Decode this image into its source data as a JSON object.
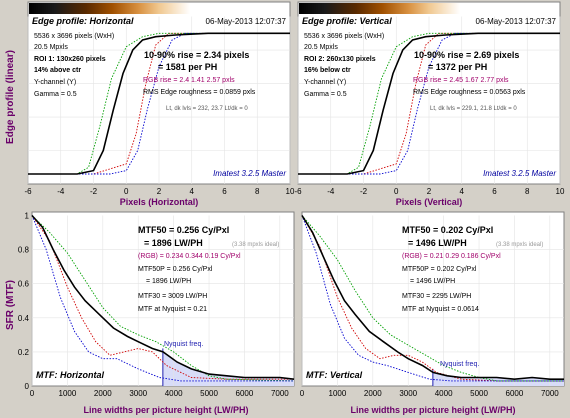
{
  "page": {
    "background": "#d4d0c8"
  },
  "colors": {
    "plot_bg": "#ffffff",
    "axis_label": "#6a006a",
    "red": "#d00000",
    "green": "#00a000",
    "blue": "#0000d0",
    "ycurve": "#000000",
    "nyq": "#2020b0",
    "nyq_fill": "#d8dcf8",
    "master": "#0000a0",
    "rgb_text": "#a0006a"
  },
  "edge_ylabel": "Edge profile (linear)",
  "sfr_ylabel": "SFR (MTF)",
  "chart_data": [
    {
      "type": "line",
      "xlim": [
        -6,
        10
      ],
      "ylim": [
        0,
        1
      ],
      "xticks": [
        "-6",
        "-4",
        "-2",
        "0",
        "2",
        "4",
        "6",
        "8",
        "10"
      ],
      "xlabel": "Pixels (Horizontal)",
      "header_title": "Edge profile: Horizontal",
      "date": "06-May-2013 12:07:37",
      "info_lines": [
        "5536 x 3696 pixels (WxH)",
        "20.5 Mpxls",
        "ROI 1: 130x260 pixels",
        "14% above ctr",
        "Y-channel (Y)",
        "Gamma = 0.5"
      ],
      "rise_line1": "10-90% rise = 2.34 pixels",
      "rise_line2": "= 1581 per PH",
      "rgb_rise": "RGB rise = 2.4  1.41  2.57 pxls",
      "roughness": "RMS Edge roughness = 0.0859 pxls",
      "levels": "Lt, dk lvls = 232, 23.7   Lt/dk = 0",
      "master": "Imatest 3.2.5 Master",
      "series": [
        {
          "color": "red",
          "x": [
            -6,
            -2,
            0,
            0.6,
            1.2,
            1.8,
            2.6,
            3.5,
            5,
            10
          ],
          "y": [
            0.06,
            0.06,
            0.12,
            0.3,
            0.6,
            0.83,
            0.9,
            0.9,
            0.9,
            0.9
          ]
        },
        {
          "color": "green",
          "x": [
            -6,
            -3,
            -2.3,
            -1.6,
            -0.9,
            0,
            1,
            2,
            4,
            10
          ],
          "y": [
            0.06,
            0.06,
            0.1,
            0.35,
            0.63,
            0.82,
            0.88,
            0.9,
            0.9,
            0.9
          ]
        },
        {
          "color": "blue",
          "x": [
            -6,
            -1,
            0,
            0.7,
            1.3,
            2,
            2.8,
            3.6,
            5,
            10
          ],
          "y": [
            0.06,
            0.06,
            0.08,
            0.2,
            0.45,
            0.7,
            0.86,
            0.9,
            0.9,
            0.9
          ]
        },
        {
          "color": "ycurve",
          "x": [
            -6,
            -3,
            -2,
            -1.4,
            -0.8,
            -0.2,
            0.4,
            1,
            1.8,
            3,
            5,
            10
          ],
          "y": [
            0.06,
            0.06,
            0.08,
            0.2,
            0.44,
            0.66,
            0.8,
            0.86,
            0.88,
            0.89,
            0.9,
            0.9
          ]
        }
      ]
    },
    {
      "type": "line",
      "xlim": [
        -6,
        10
      ],
      "ylim": [
        0,
        1
      ],
      "xticks": [
        "-6",
        "-4",
        "-2",
        "0",
        "2",
        "4",
        "6",
        "8",
        "10"
      ],
      "xlabel": "Pixels (Vertical)",
      "header_title": "Edge profile: Vertical",
      "date": "06-May-2013 12:07:37",
      "info_lines": [
        "5536 x 3696 pixels (WxH)",
        "20.5 Mpxls",
        "ROI 2: 260x130 pixels",
        "16% below ctr",
        "Y-channel (Y)",
        "Gamma = 0.5"
      ],
      "rise_line1": "10-90% rise = 2.69 pixels",
      "rise_line2": "= 1372 per PH",
      "rgb_rise": "RGB rise = 2.45  1.67  2.77 pxls",
      "roughness": "RMS Edge roughness = 0.0563 pxls",
      "levels": "Lt, dk lvls = 229.1, 21.8   Lt/dk = 0",
      "master": "Imatest 3.2.5 Master",
      "series": [
        {
          "color": "red",
          "x": [
            -6,
            -2,
            0,
            0.6,
            1.2,
            1.8,
            2.6,
            3.5,
            5,
            10
          ],
          "y": [
            0.06,
            0.06,
            0.12,
            0.3,
            0.6,
            0.83,
            0.9,
            0.9,
            0.9,
            0.9
          ]
        },
        {
          "color": "green",
          "x": [
            -6,
            -3,
            -2.3,
            -1.6,
            -0.9,
            0,
            1,
            2,
            4,
            10
          ],
          "y": [
            0.06,
            0.06,
            0.1,
            0.35,
            0.63,
            0.82,
            0.88,
            0.9,
            0.9,
            0.9
          ]
        },
        {
          "color": "blue",
          "x": [
            -6,
            -1,
            0,
            0.7,
            1.3,
            2,
            2.8,
            3.6,
            5,
            10
          ],
          "y": [
            0.06,
            0.06,
            0.08,
            0.2,
            0.45,
            0.7,
            0.86,
            0.9,
            0.9,
            0.9
          ]
        },
        {
          "color": "ycurve",
          "x": [
            -6,
            -3,
            -2,
            -1.4,
            -0.8,
            -0.2,
            0.4,
            1,
            1.8,
            3,
            5,
            10
          ],
          "y": [
            0.06,
            0.06,
            0.08,
            0.2,
            0.44,
            0.66,
            0.8,
            0.86,
            0.88,
            0.89,
            0.9,
            0.9
          ]
        }
      ]
    },
    {
      "type": "line",
      "xlim": [
        0,
        7400
      ],
      "ylim": [
        0,
        1
      ],
      "xticks": [
        "0",
        "1000",
        "2000",
        "3000",
        "4000",
        "5000",
        "6000",
        "7000"
      ],
      "yticks": [
        "0",
        "0.2",
        "0.4",
        "0.6",
        "0.8",
        "1"
      ],
      "xlabel": "Line widths per picture height (LW/PH)",
      "mtf50_line1": "MTF50 = 0.256 Cy/Pxl",
      "mtf50_line2": "= 1896 LW/PH",
      "ideal": "(3.38 mpxls ideal)",
      "rgb": "(RGB) = 0.234  0.344  0.19 Cy/Pxl",
      "mtf50p_line1": "MTF50P = 0.256 Cy/Pxl",
      "mtf50p_line2": "= 1896 LW/PH",
      "mtf30": "MTF30 = 3009 LW/PH",
      "nyquist_mtf": "MTF at Nyquist = 0.21",
      "nyquist_label": "Nyquist freq.",
      "nyquist_x": 3696,
      "corner_title": "MTF: Horizontal",
      "series": [
        {
          "color": "red",
          "x": [
            0,
            500,
            1000,
            1400,
            1800,
            2200,
            2600,
            3000,
            3400,
            3800,
            4500,
            5500,
            7400
          ],
          "y": [
            1,
            0.85,
            0.58,
            0.4,
            0.26,
            0.18,
            0.2,
            0.22,
            0.2,
            0.12,
            0.05,
            0.04,
            0.04
          ]
        },
        {
          "color": "green",
          "x": [
            0,
            500,
            1000,
            1500,
            2000,
            2500,
            3000,
            3500,
            4000,
            4500,
            5000,
            5500,
            7400
          ],
          "y": [
            1,
            0.9,
            0.78,
            0.62,
            0.46,
            0.35,
            0.3,
            0.26,
            0.2,
            0.12,
            0.06,
            0.04,
            0.03
          ]
        },
        {
          "color": "blue",
          "x": [
            0,
            400,
            800,
            1200,
            1600,
            2000,
            2400,
            3000,
            3600,
            4200,
            5000,
            7400
          ],
          "y": [
            1,
            0.8,
            0.52,
            0.32,
            0.2,
            0.16,
            0.16,
            0.1,
            0.05,
            0.03,
            0.03,
            0.03
          ]
        },
        {
          "color": "ycurve",
          "x": [
            0,
            300,
            600,
            900,
            1200,
            1500,
            1900,
            2300,
            2700,
            3000,
            3400,
            3700,
            4100,
            4500,
            5000,
            5500,
            6000,
            6500,
            7000,
            7400
          ],
          "y": [
            1,
            0.93,
            0.8,
            0.68,
            0.58,
            0.5,
            0.42,
            0.34,
            0.29,
            0.26,
            0.22,
            0.2,
            0.14,
            0.1,
            0.07,
            0.06,
            0.05,
            0.05,
            0.05,
            0.04
          ]
        }
      ]
    },
    {
      "type": "line",
      "xlim": [
        0,
        7400
      ],
      "ylim": [
        0,
        1
      ],
      "xticks": [
        "0",
        "1000",
        "2000",
        "3000",
        "4000",
        "5000",
        "6000",
        "7000"
      ],
      "xlabel": "Line widths per picture height (LW/PH)",
      "mtf50_line1": "MTF50 = 0.202 Cy/Pxl",
      "mtf50_line2": "= 1496 LW/PH",
      "ideal": "(3.38 mpxls ideal)",
      "rgb": "(RGB) = 0.21  0.29  0.186 Cy/Pxl",
      "mtf50p_line1": "MTF50P = 0.202 Cy/Pxl",
      "mtf50p_line2": "= 1496 LW/PH",
      "mtf30": "MTF30 = 2295 LW/PH",
      "nyquist_mtf": "MTF at Nyquist = 0.0614",
      "nyquist_label": "Nyquist freq.",
      "nyquist_x": 3696,
      "corner_title": "MTF: Vertical",
      "series": [
        {
          "color": "red",
          "x": [
            0,
            500,
            1000,
            1400,
            1800,
            2200,
            2600,
            3000,
            3400,
            3800,
            4500,
            5500,
            7400
          ],
          "y": [
            1,
            0.82,
            0.52,
            0.34,
            0.22,
            0.16,
            0.18,
            0.18,
            0.14,
            0.08,
            0.04,
            0.03,
            0.03
          ]
        },
        {
          "color": "green",
          "x": [
            0,
            500,
            1000,
            1500,
            2000,
            2500,
            3000,
            3500,
            4000,
            4500,
            5000,
            5500,
            7400
          ],
          "y": [
            1,
            0.88,
            0.74,
            0.56,
            0.4,
            0.3,
            0.24,
            0.18,
            0.12,
            0.08,
            0.05,
            0.03,
            0.03
          ]
        },
        {
          "color": "blue",
          "x": [
            0,
            400,
            800,
            1200,
            1600,
            2000,
            2400,
            3000,
            3600,
            4200,
            5000,
            7400
          ],
          "y": [
            1,
            0.78,
            0.48,
            0.28,
            0.18,
            0.14,
            0.12,
            0.08,
            0.04,
            0.03,
            0.03,
            0.03
          ]
        },
        {
          "color": "ycurve",
          "x": [
            0,
            300,
            600,
            900,
            1200,
            1500,
            1900,
            2300,
            2700,
            3000,
            3400,
            3700,
            4100,
            4500,
            5000,
            5500,
            6000,
            6500,
            7000,
            7400
          ],
          "y": [
            1,
            0.9,
            0.76,
            0.62,
            0.5,
            0.42,
            0.32,
            0.26,
            0.2,
            0.16,
            0.12,
            0.08,
            0.06,
            0.05,
            0.05,
            0.05,
            0.04,
            0.05,
            0.04,
            0.04
          ]
        }
      ]
    }
  ]
}
